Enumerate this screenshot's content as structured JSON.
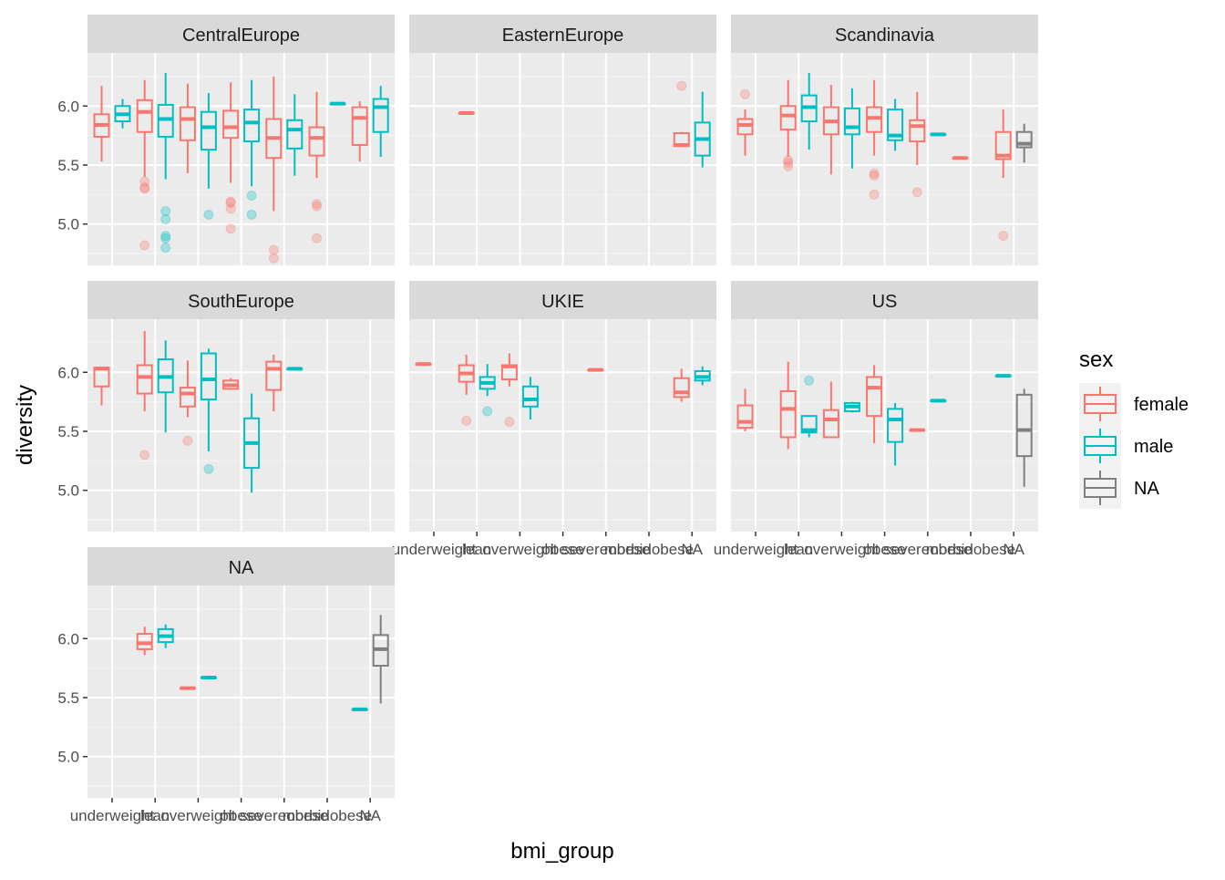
{
  "chart_data": {
    "type": "boxplot",
    "facet_by": "region",
    "xlabel": "bmi_group",
    "ylabel": "diversity",
    "ylim": [
      4.65,
      6.45
    ],
    "y_ticks": [
      "5.0",
      "5.5",
      "6.0"
    ],
    "y_tick_values": [
      5.0,
      5.5,
      6.0
    ],
    "categories": [
      "underweight",
      "lean",
      "overweight",
      "obese",
      "severeobese",
      "morbidobese",
      "NA"
    ],
    "legend": {
      "title": "sex",
      "position": "right",
      "entries": [
        {
          "label": "female",
          "color": "#F8766D"
        },
        {
          "label": "male",
          "color": "#00BFC4"
        },
        {
          "label": "NA",
          "color": "#7F7F7F"
        }
      ]
    },
    "colors": {
      "female": "#F8766D",
      "male": "#00BFC4",
      "NA": "#7F7F7F",
      "panel_bg": "#EBEBEB",
      "strip_bg": "#D9D9D9",
      "grid": "#FFFFFF"
    },
    "panels": [
      {
        "title": "CentralEurope",
        "boxes": [
          {
            "category": "underweight",
            "sex": "female",
            "q1": 5.74,
            "median": 5.84,
            "q3": 5.93,
            "lower": 5.53,
            "upper": 6.17,
            "outliers": []
          },
          {
            "category": "underweight",
            "sex": "male",
            "q1": 5.87,
            "median": 5.93,
            "q3": 6.0,
            "lower": 5.81,
            "upper": 6.06,
            "outliers": []
          },
          {
            "category": "lean",
            "sex": "female",
            "q1": 5.78,
            "median": 5.95,
            "q3": 6.05,
            "lower": 5.4,
            "upper": 6.22,
            "outliers": [
              5.36,
              5.31,
              5.3,
              4.82
            ]
          },
          {
            "category": "lean",
            "sex": "male",
            "q1": 5.74,
            "median": 5.89,
            "q3": 6.01,
            "lower": 5.38,
            "upper": 6.28,
            "outliers": [
              5.11,
              5.04,
              4.9,
              4.88,
              4.8
            ]
          },
          {
            "category": "overweight",
            "sex": "female",
            "q1": 5.71,
            "median": 5.89,
            "q3": 5.99,
            "lower": 5.43,
            "upper": 6.19,
            "outliers": []
          },
          {
            "category": "overweight",
            "sex": "male",
            "q1": 5.63,
            "median": 5.82,
            "q3": 5.95,
            "lower": 5.3,
            "upper": 6.11,
            "outliers": [
              5.08
            ]
          },
          {
            "category": "obese",
            "sex": "female",
            "q1": 5.73,
            "median": 5.82,
            "q3": 5.96,
            "lower": 5.35,
            "upper": 6.2,
            "outliers": [
              5.19,
              5.18,
              5.13,
              4.96
            ]
          },
          {
            "category": "obese",
            "sex": "male",
            "q1": 5.7,
            "median": 5.86,
            "q3": 5.97,
            "lower": 5.32,
            "upper": 6.22,
            "outliers": [
              5.24,
              5.08
            ]
          },
          {
            "category": "severeobese",
            "sex": "female",
            "q1": 5.56,
            "median": 5.73,
            "q3": 5.89,
            "lower": 5.11,
            "upper": 6.25,
            "outliers": [
              4.78,
              4.71
            ]
          },
          {
            "category": "severeobese",
            "sex": "male",
            "q1": 5.64,
            "median": 5.8,
            "q3": 5.88,
            "lower": 5.41,
            "upper": 6.1,
            "outliers": []
          },
          {
            "category": "morbidobese",
            "sex": "female",
            "q1": 5.58,
            "median": 5.73,
            "q3": 5.82,
            "lower": 5.39,
            "upper": 6.12,
            "outliers": [
              5.17,
              5.15,
              4.88
            ]
          },
          {
            "category": "morbidobese",
            "sex": "male",
            "q1": 6.02,
            "median": 6.02,
            "q3": 6.02,
            "lower": 6.02,
            "upper": 6.02,
            "outliers": []
          },
          {
            "category": "NA",
            "sex": "female",
            "q1": 5.67,
            "median": 5.9,
            "q3": 5.99,
            "lower": 5.53,
            "upper": 6.04,
            "outliers": []
          },
          {
            "category": "NA",
            "sex": "male",
            "q1": 5.78,
            "median": 5.99,
            "q3": 6.06,
            "lower": 5.57,
            "upper": 6.17,
            "outliers": []
          }
        ]
      },
      {
        "title": "EasternEurope",
        "boxes": [
          {
            "category": "lean",
            "sex": "female",
            "q1": 5.94,
            "median": 5.94,
            "q3": 5.94,
            "lower": 5.94,
            "upper": 5.94,
            "outliers": []
          },
          {
            "category": "NA",
            "sex": "female",
            "q1": 5.66,
            "median": 5.67,
            "q3": 5.77,
            "lower": 5.66,
            "upper": 5.78,
            "outliers": [
              6.17
            ]
          },
          {
            "category": "NA",
            "sex": "male",
            "q1": 5.58,
            "median": 5.72,
            "q3": 5.86,
            "lower": 5.48,
            "upper": 6.12,
            "outliers": []
          }
        ]
      },
      {
        "title": "Scandinavia",
        "boxes": [
          {
            "category": "underweight",
            "sex": "female",
            "q1": 5.76,
            "median": 5.84,
            "q3": 5.89,
            "lower": 5.58,
            "upper": 5.97,
            "outliers": [
              6.1
            ]
          },
          {
            "category": "lean",
            "sex": "female",
            "q1": 5.8,
            "median": 5.92,
            "q3": 6.0,
            "lower": 5.57,
            "upper": 6.22,
            "outliers": [
              5.54,
              5.52,
              5.49
            ]
          },
          {
            "category": "lean",
            "sex": "male",
            "q1": 5.87,
            "median": 5.99,
            "q3": 6.09,
            "lower": 5.63,
            "upper": 6.28,
            "outliers": []
          },
          {
            "category": "overweight",
            "sex": "female",
            "q1": 5.76,
            "median": 5.87,
            "q3": 5.99,
            "lower": 5.42,
            "upper": 6.18,
            "outliers": []
          },
          {
            "category": "overweight",
            "sex": "male",
            "q1": 5.76,
            "median": 5.82,
            "q3": 5.98,
            "lower": 5.47,
            "upper": 6.15,
            "outliers": []
          },
          {
            "category": "obese",
            "sex": "female",
            "q1": 5.78,
            "median": 5.9,
            "q3": 5.99,
            "lower": 5.58,
            "upper": 6.22,
            "outliers": [
              5.43,
              5.41,
              5.25
            ]
          },
          {
            "category": "obese",
            "sex": "male",
            "q1": 5.71,
            "median": 5.75,
            "q3": 5.97,
            "lower": 5.62,
            "upper": 6.06,
            "outliers": []
          },
          {
            "category": "severeobese",
            "sex": "female",
            "q1": 5.7,
            "median": 5.83,
            "q3": 5.88,
            "lower": 5.5,
            "upper": 6.12,
            "outliers": [
              5.27
            ]
          },
          {
            "category": "severeobese",
            "sex": "male",
            "q1": 5.76,
            "median": 5.76,
            "q3": 5.76,
            "lower": 5.76,
            "upper": 5.76,
            "outliers": []
          },
          {
            "category": "morbidobese",
            "sex": "female",
            "q1": 5.56,
            "median": 5.56,
            "q3": 5.56,
            "lower": 5.56,
            "upper": 5.56,
            "outliers": []
          },
          {
            "category": "NA",
            "sex": "female",
            "q1": 5.55,
            "median": 5.58,
            "q3": 5.78,
            "lower": 5.39,
            "upper": 5.97,
            "outliers": [
              4.9
            ]
          },
          {
            "category": "NA",
            "sex": "NA",
            "q1": 5.65,
            "median": 5.68,
            "q3": 5.78,
            "lower": 5.52,
            "upper": 5.85,
            "outliers": []
          }
        ]
      },
      {
        "title": "SouthEurope",
        "boxes": [
          {
            "category": "underweight",
            "sex": "female",
            "q1": 5.88,
            "median": 6.03,
            "q3": 6.04,
            "lower": 5.72,
            "upper": 6.04,
            "outliers": []
          },
          {
            "category": "lean",
            "sex": "female",
            "q1": 5.82,
            "median": 5.96,
            "q3": 6.06,
            "lower": 5.67,
            "upper": 6.35,
            "outliers": [
              5.3
            ]
          },
          {
            "category": "lean",
            "sex": "male",
            "q1": 5.83,
            "median": 5.96,
            "q3": 6.11,
            "lower": 5.49,
            "upper": 6.27,
            "outliers": []
          },
          {
            "category": "overweight",
            "sex": "female",
            "q1": 5.71,
            "median": 5.82,
            "q3": 5.87,
            "lower": 5.62,
            "upper": 6.1,
            "outliers": [
              5.42
            ]
          },
          {
            "category": "overweight",
            "sex": "male",
            "q1": 5.77,
            "median": 5.94,
            "q3": 6.16,
            "lower": 5.33,
            "upper": 6.2,
            "outliers": [
              5.18
            ]
          },
          {
            "category": "obese",
            "sex": "female",
            "q1": 5.86,
            "median": 5.89,
            "q3": 5.93,
            "lower": 5.85,
            "upper": 5.95,
            "outliers": []
          },
          {
            "category": "obese",
            "sex": "male",
            "q1": 5.19,
            "median": 5.4,
            "q3": 5.61,
            "lower": 4.98,
            "upper": 5.82,
            "outliers": []
          },
          {
            "category": "severeobese",
            "sex": "female",
            "q1": 5.85,
            "median": 6.03,
            "q3": 6.09,
            "lower": 5.67,
            "upper": 6.15,
            "outliers": []
          },
          {
            "category": "severeobese",
            "sex": "male",
            "q1": 6.03,
            "median": 6.03,
            "q3": 6.03,
            "lower": 6.03,
            "upper": 6.03,
            "outliers": []
          }
        ]
      },
      {
        "title": "UKIE",
        "boxes": [
          {
            "category": "underweight",
            "sex": "female",
            "q1": 6.07,
            "median": 6.07,
            "q3": 6.07,
            "lower": 6.07,
            "upper": 6.07,
            "outliers": []
          },
          {
            "category": "lean",
            "sex": "female",
            "q1": 5.92,
            "median": 5.99,
            "q3": 6.06,
            "lower": 5.81,
            "upper": 6.15,
            "outliers": [
              5.59
            ]
          },
          {
            "category": "lean",
            "sex": "male",
            "q1": 5.86,
            "median": 5.91,
            "q3": 5.96,
            "lower": 5.8,
            "upper": 6.07,
            "outliers": [
              5.67
            ]
          },
          {
            "category": "overweight",
            "sex": "female",
            "q1": 5.94,
            "median": 6.05,
            "q3": 6.06,
            "lower": 5.88,
            "upper": 6.16,
            "outliers": [
              5.58
            ]
          },
          {
            "category": "overweight",
            "sex": "male",
            "q1": 5.71,
            "median": 5.77,
            "q3": 5.88,
            "lower": 5.6,
            "upper": 5.96,
            "outliers": []
          },
          {
            "category": "severeobese",
            "sex": "female",
            "q1": 6.02,
            "median": 6.02,
            "q3": 6.02,
            "lower": 6.02,
            "upper": 6.02,
            "outliers": []
          },
          {
            "category": "NA",
            "sex": "female",
            "q1": 5.79,
            "median": 5.83,
            "q3": 5.95,
            "lower": 5.75,
            "upper": 6.03,
            "outliers": []
          },
          {
            "category": "NA",
            "sex": "male",
            "q1": 5.93,
            "median": 5.96,
            "q3": 6.01,
            "lower": 5.89,
            "upper": 6.05,
            "outliers": []
          }
        ]
      },
      {
        "title": "US",
        "boxes": [
          {
            "category": "underweight",
            "sex": "female",
            "q1": 5.53,
            "median": 5.58,
            "q3": 5.72,
            "lower": 5.5,
            "upper": 5.86,
            "outliers": []
          },
          {
            "category": "lean",
            "sex": "female",
            "q1": 5.45,
            "median": 5.69,
            "q3": 5.84,
            "lower": 5.35,
            "upper": 6.09,
            "outliers": []
          },
          {
            "category": "lean",
            "sex": "male",
            "q1": 5.49,
            "median": 5.51,
            "q3": 5.63,
            "lower": 5.45,
            "upper": 5.63,
            "outliers": [
              5.93
            ]
          },
          {
            "category": "overweight",
            "sex": "female",
            "q1": 5.45,
            "median": 5.6,
            "q3": 5.68,
            "lower": 5.45,
            "upper": 5.92,
            "outliers": []
          },
          {
            "category": "overweight",
            "sex": "male",
            "q1": 5.67,
            "median": 5.71,
            "q3": 5.74,
            "lower": 5.66,
            "upper": 5.75,
            "outliers": []
          },
          {
            "category": "obese",
            "sex": "female",
            "q1": 5.63,
            "median": 5.87,
            "q3": 5.96,
            "lower": 5.4,
            "upper": 6.06,
            "outliers": []
          },
          {
            "category": "obese",
            "sex": "male",
            "q1": 5.41,
            "median": 5.6,
            "q3": 5.69,
            "lower": 5.21,
            "upper": 5.74,
            "outliers": []
          },
          {
            "category": "severeobese",
            "sex": "female",
            "q1": 5.51,
            "median": 5.51,
            "q3": 5.51,
            "lower": 5.51,
            "upper": 5.51,
            "outliers": []
          },
          {
            "category": "severeobese",
            "sex": "male",
            "q1": 5.76,
            "median": 5.76,
            "q3": 5.76,
            "lower": 5.76,
            "upper": 5.76,
            "outliers": []
          },
          {
            "category": "NA",
            "sex": "male",
            "q1": 5.97,
            "median": 5.97,
            "q3": 5.97,
            "lower": 5.97,
            "upper": 5.97,
            "outliers": []
          },
          {
            "category": "NA",
            "sex": "NA",
            "q1": 5.29,
            "median": 5.51,
            "q3": 5.81,
            "lower": 5.03,
            "upper": 5.86,
            "outliers": []
          }
        ]
      },
      {
        "title": "NA",
        "boxes": [
          {
            "category": "lean",
            "sex": "female",
            "q1": 5.91,
            "median": 5.96,
            "q3": 6.04,
            "lower": 5.86,
            "upper": 6.1,
            "outliers": []
          },
          {
            "category": "lean",
            "sex": "male",
            "q1": 5.97,
            "median": 6.02,
            "q3": 6.08,
            "lower": 5.92,
            "upper": 6.12,
            "outliers": []
          },
          {
            "category": "overweight",
            "sex": "female",
            "q1": 5.58,
            "median": 5.58,
            "q3": 5.58,
            "lower": 5.58,
            "upper": 5.58,
            "outliers": []
          },
          {
            "category": "overweight",
            "sex": "male",
            "q1": 5.67,
            "median": 5.67,
            "q3": 5.67,
            "lower": 5.67,
            "upper": 5.67,
            "outliers": []
          },
          {
            "category": "NA",
            "sex": "male",
            "q1": 5.4,
            "median": 5.4,
            "q3": 5.4,
            "lower": 5.4,
            "upper": 5.4,
            "outliers": []
          },
          {
            "category": "NA",
            "sex": "NA",
            "q1": 5.77,
            "median": 5.91,
            "q3": 6.03,
            "lower": 5.45,
            "upper": 6.2,
            "outliers": []
          }
        ]
      }
    ],
    "x_axis_panels": [
      "UKIE",
      "US",
      "NA"
    ]
  }
}
